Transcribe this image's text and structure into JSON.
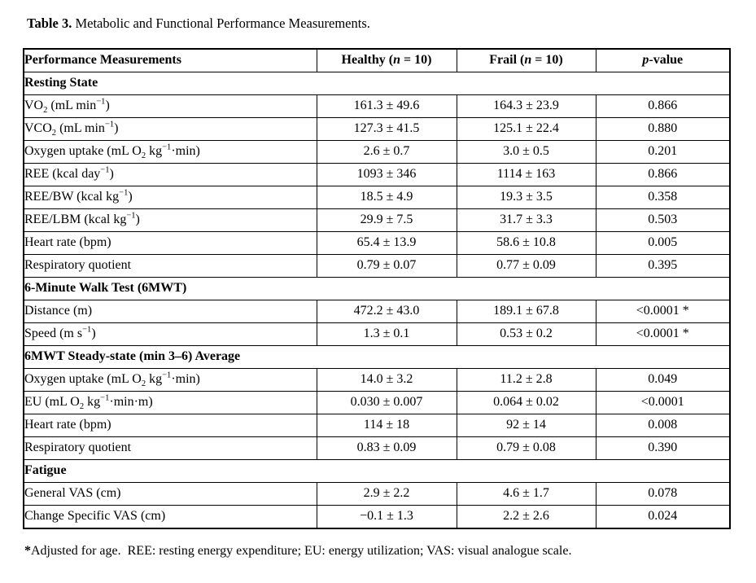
{
  "page": {
    "title_bold": "Table 3.",
    "title_rest": " Metabolic and Functional Performance Measurements.",
    "footnote_marker": "*",
    "footnote_text": "Adjusted for age.  REE: resting energy expenditure; EU: energy utilization; VAS: visual analogue scale."
  },
  "table": {
    "headers": [
      "Performance Measurements",
      "Healthy (~{n} = 10)",
      "Frail (~{n} = 10)",
      "~{p}-value"
    ],
    "sections": [
      {
        "label": "Resting State",
        "rows": [
          [
            "VO_{2} (mL min^{−1})",
            "161.3 ± 49.6",
            "164.3 ± 23.9",
            "0.866"
          ],
          [
            "VCO_{2} (mL min^{−1})",
            "127.3 ± 41.5",
            "125.1 ± 22.4",
            "0.880"
          ],
          [
            "Oxygen uptake (mL O_{2} kg^{−1}·min)",
            "2.6 ± 0.7",
            "3.0 ± 0.5",
            "0.201"
          ],
          [
            "REE (kcal day^{−1})",
            "1093 ± 346",
            "1114 ± 163",
            "0.866"
          ],
          [
            "REE/BW (kcal kg^{−1})",
            "18.5 ± 4.9",
            "19.3 ± 3.5",
            "0.358"
          ],
          [
            "REE/LBM (kcal kg^{−1})",
            "29.9 ± 7.5",
            "31.7 ± 3.3",
            "0.503"
          ],
          [
            "Heart rate (bpm)",
            "65.4 ± 13.9",
            "58.6 ± 10.8",
            "0.005"
          ],
          [
            "Respiratory quotient",
            "0.79 ± 0.07",
            "0.77 ± 0.09",
            "0.395"
          ]
        ]
      },
      {
        "label": "6-Minute Walk Test (6MWT)",
        "rows": [
          [
            "Distance (m)",
            "472.2 ± 43.0",
            "189.1 ± 67.8",
            "<0.0001 *"
          ],
          [
            "Speed (m s^{−1})",
            "1.3 ± 0.1",
            "0.53 ± 0.2",
            "<0.0001 *"
          ]
        ]
      },
      {
        "label": "6MWT Steady-state (min 3–6) Average",
        "rows": [
          [
            "Oxygen uptake (mL O_{2} kg^{−1}·min)",
            "14.0 ± 3.2",
            "11.2 ± 2.8",
            "0.049"
          ],
          [
            "EU (mL O_{2} kg^{−1}·min·m)",
            "0.030 ± 0.007",
            "0.064 ± 0.02",
            "<0.0001"
          ],
          [
            "Heart rate (bpm)",
            "114 ± 18",
            "92 ± 14",
            "0.008"
          ],
          [
            "Respiratory quotient",
            "0.83 ± 0.09",
            "0.79 ± 0.08",
            "0.390"
          ]
        ]
      },
      {
        "label": "Fatigue",
        "rows": [
          [
            "General VAS (cm)",
            "2.9 ± 2.2",
            "4.6 ± 1.7",
            "0.078"
          ],
          [
            "Change Specific VAS (cm)",
            "−0.1 ± 1.3",
            "2.2 ± 2.6",
            "0.024"
          ]
        ]
      }
    ]
  }
}
